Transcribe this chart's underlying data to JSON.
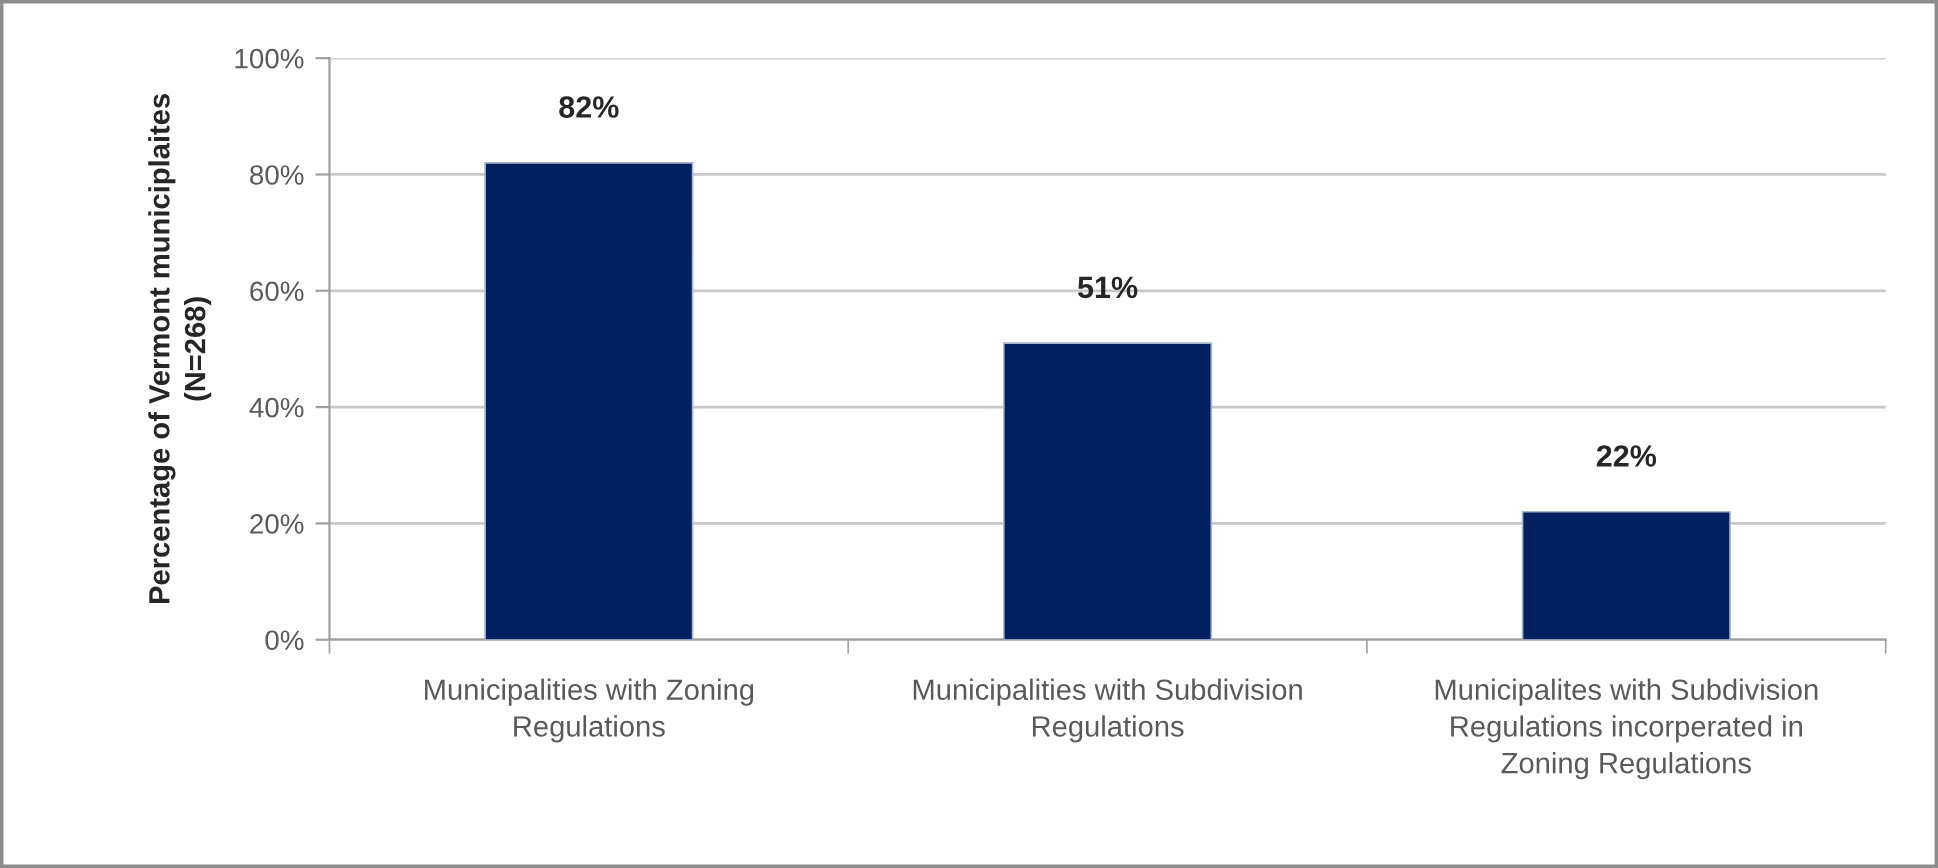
{
  "chart_data": {
    "type": "bar",
    "ylabel": "Percentage of Vermont municiplaites\n(N=268)",
    "categories": [
      "Municipalities with Zoning\nRegulations",
      "Municipalities with Subdivision\nRegulations",
      "Municipalites with Subdivision\nRegulations incorperated in\nZoning Regulations"
    ],
    "values": [
      82,
      51,
      22
    ],
    "color": "#002060",
    "value_labels": [
      "82%",
      "51%",
      "22%"
    ],
    "ylim": [
      0,
      100
    ],
    "yticks": [
      {
        "value": 0,
        "label": "0%"
      },
      {
        "value": 20,
        "label": "20%"
      },
      {
        "value": 40,
        "label": "40%"
      },
      {
        "value": 60,
        "label": "60%"
      },
      {
        "value": 80,
        "label": "80%"
      },
      {
        "value": 100,
        "label": "100%"
      }
    ],
    "grid": "y",
    "legend": false
  }
}
